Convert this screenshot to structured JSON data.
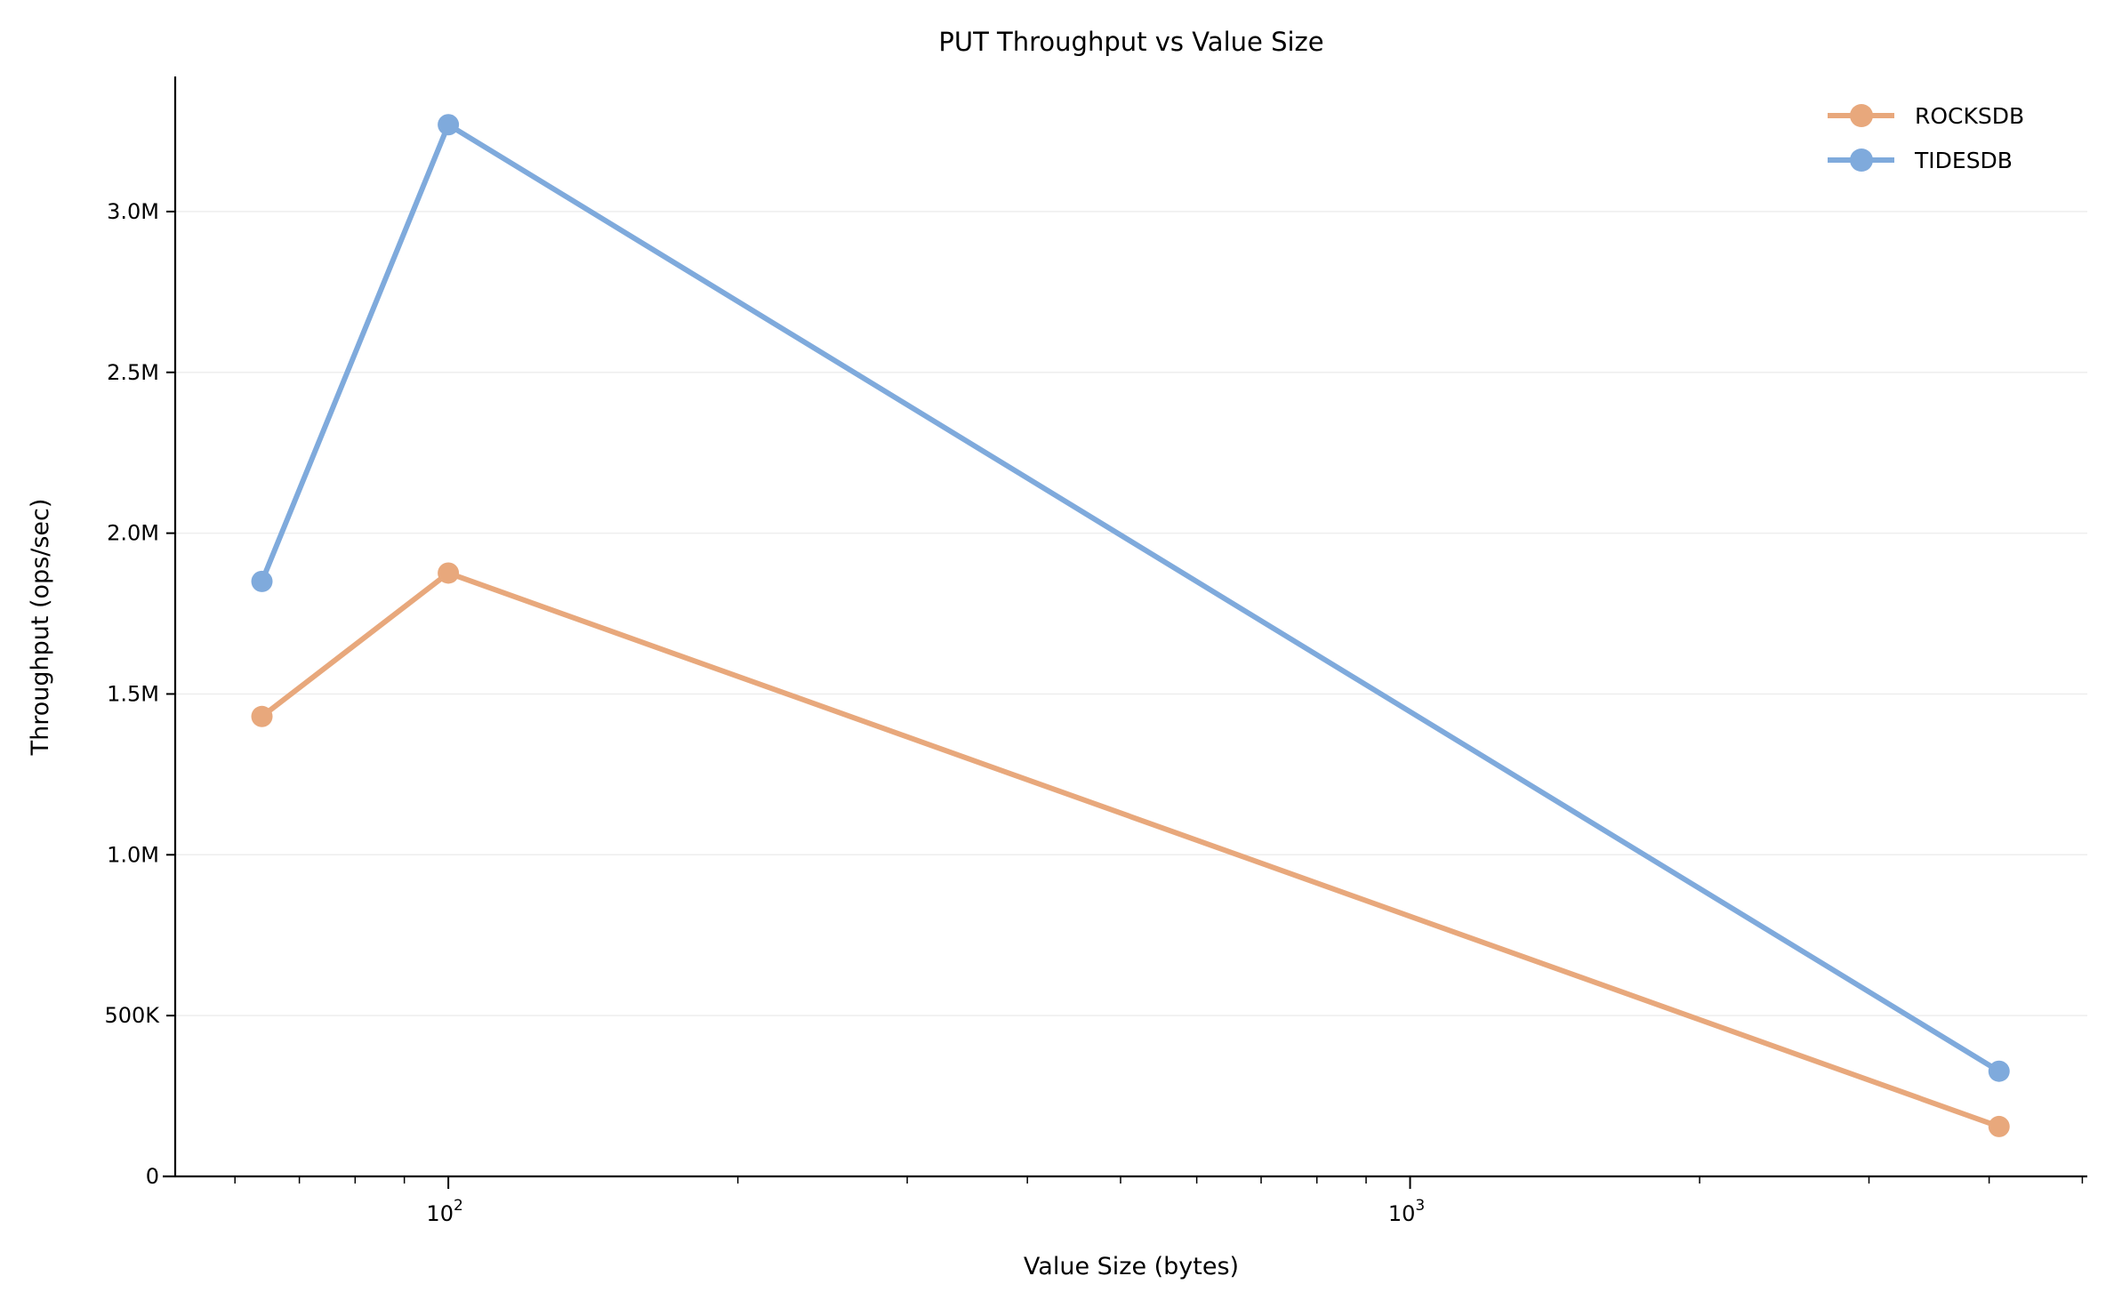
{
  "chart_data": {
    "type": "line",
    "title": "PUT Throughput vs Value Size",
    "xlabel": "Value Size (bytes)",
    "ylabel": "Throughput (ops/sec)",
    "xscale": "log",
    "xlim": [
      52,
      5060
    ],
    "ylim": [
      0,
      3420000
    ],
    "x": [
      64,
      100,
      4096
    ],
    "x_ticks": [
      {
        "value": 100,
        "base": "10",
        "exp": "2"
      },
      {
        "value": 1000,
        "base": "10",
        "exp": "3"
      }
    ],
    "y_ticks": [
      {
        "value": 0,
        "label": "0"
      },
      {
        "value": 500000,
        "label": "500K"
      },
      {
        "value": 1000000,
        "label": "1.0M"
      },
      {
        "value": 1500000,
        "label": "1.5M"
      },
      {
        "value": 2000000,
        "label": "2.0M"
      },
      {
        "value": 2500000,
        "label": "2.5M"
      },
      {
        "value": 3000000,
        "label": "3.0M"
      }
    ],
    "grid": "horizontal",
    "legend_position": "top-right",
    "series": [
      {
        "name": "ROCKSDB",
        "color": "#E8A87C",
        "values": [
          1430000,
          1876000,
          155000
        ]
      },
      {
        "name": "TIDESDB",
        "color": "#7FAADC",
        "values": [
          1850000,
          3270000,
          327000
        ]
      }
    ]
  }
}
